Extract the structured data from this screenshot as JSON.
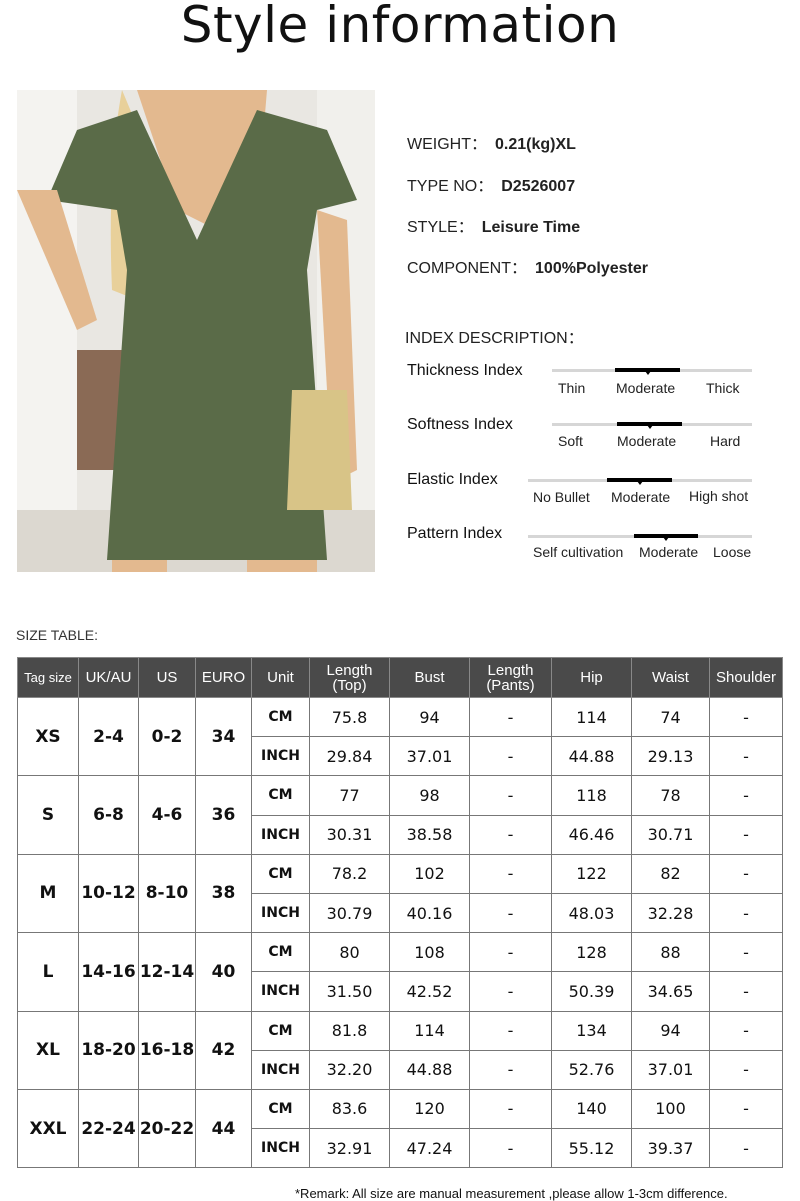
{
  "title": "Style information",
  "specs": [
    {
      "label": "WEIGHT：",
      "value": "0.21(kg)XL"
    },
    {
      "label": "TYPE NO：",
      "value": "D2526007"
    },
    {
      "label": "STYLE：",
      "value": "Leisure Time"
    },
    {
      "label": "COMPONENT：",
      "value": "100%Polyester"
    }
  ],
  "index_heading": "INDEX DESCRIPTION：",
  "indexes": [
    {
      "label": "Thickness Index",
      "options": [
        "Thin",
        "Moderate",
        "Thick"
      ],
      "selected": "Moderate"
    },
    {
      "label": "Softness Index",
      "options": [
        "Soft",
        "Moderate",
        "Hard"
      ],
      "selected": "Moderate"
    },
    {
      "label": "Elastic Index",
      "options": [
        "No Bullet",
        "Moderate",
        "High shot"
      ],
      "selected": "Moderate"
    },
    {
      "label": "Pattern Index",
      "options": [
        "Self cultivation",
        "Moderate",
        "Loose"
      ],
      "selected": "Moderate"
    }
  ],
  "size_table_heading": "SIZE TABLE:",
  "size_table": {
    "headers": [
      "Tag size",
      "UK/AU",
      "US",
      "EURO",
      "Unit",
      "Length (Top)",
      "Bust",
      "Length (Pants)",
      "Hip",
      "Waist",
      "Shoulder"
    ],
    "rows": [
      {
        "tag": "XS",
        "uk": "2-4",
        "us": "0-2",
        "euro": "34",
        "cm": [
          "75.8",
          "94",
          "-",
          "114",
          "74",
          "-"
        ],
        "inch": [
          "29.84",
          "37.01",
          "-",
          "44.88",
          "29.13",
          "-"
        ]
      },
      {
        "tag": "S",
        "uk": "6-8",
        "us": "4-6",
        "euro": "36",
        "cm": [
          "77",
          "98",
          "-",
          "118",
          "78",
          "-"
        ],
        "inch": [
          "30.31",
          "38.58",
          "-",
          "46.46",
          "30.71",
          "-"
        ]
      },
      {
        "tag": "M",
        "uk": "10-12",
        "us": "8-10",
        "euro": "38",
        "cm": [
          "78.2",
          "102",
          "-",
          "122",
          "82",
          "-"
        ],
        "inch": [
          "30.79",
          "40.16",
          "-",
          "48.03",
          "32.28",
          "-"
        ]
      },
      {
        "tag": "L",
        "uk": "14-16",
        "us": "12-14",
        "euro": "40",
        "cm": [
          "80",
          "108",
          "-",
          "128",
          "88",
          "-"
        ],
        "inch": [
          "31.50",
          "42.52",
          "-",
          "50.39",
          "34.65",
          "-"
        ]
      },
      {
        "tag": "XL",
        "uk": "18-20",
        "us": "16-18",
        "euro": "42",
        "cm": [
          "81.8",
          "114",
          "-",
          "134",
          "94",
          "-"
        ],
        "inch": [
          "32.20",
          "44.88",
          "-",
          "52.76",
          "37.01",
          "-"
        ]
      },
      {
        "tag": "XXL",
        "uk": "22-24",
        "us": "20-22",
        "euro": "44",
        "cm": [
          "83.6",
          "120",
          "-",
          "140",
          "100",
          "-"
        ],
        "inch": [
          "32.91",
          "47.24",
          "-",
          "55.12",
          "39.37",
          "-"
        ]
      }
    ],
    "units": [
      "CM",
      "INCH"
    ]
  },
  "remark": "*Remark: All size are manual measurement ,please allow 1-3cm difference.",
  "colors": {
    "header_bg": "#4a4a4a",
    "garment": "#5a6b48"
  }
}
